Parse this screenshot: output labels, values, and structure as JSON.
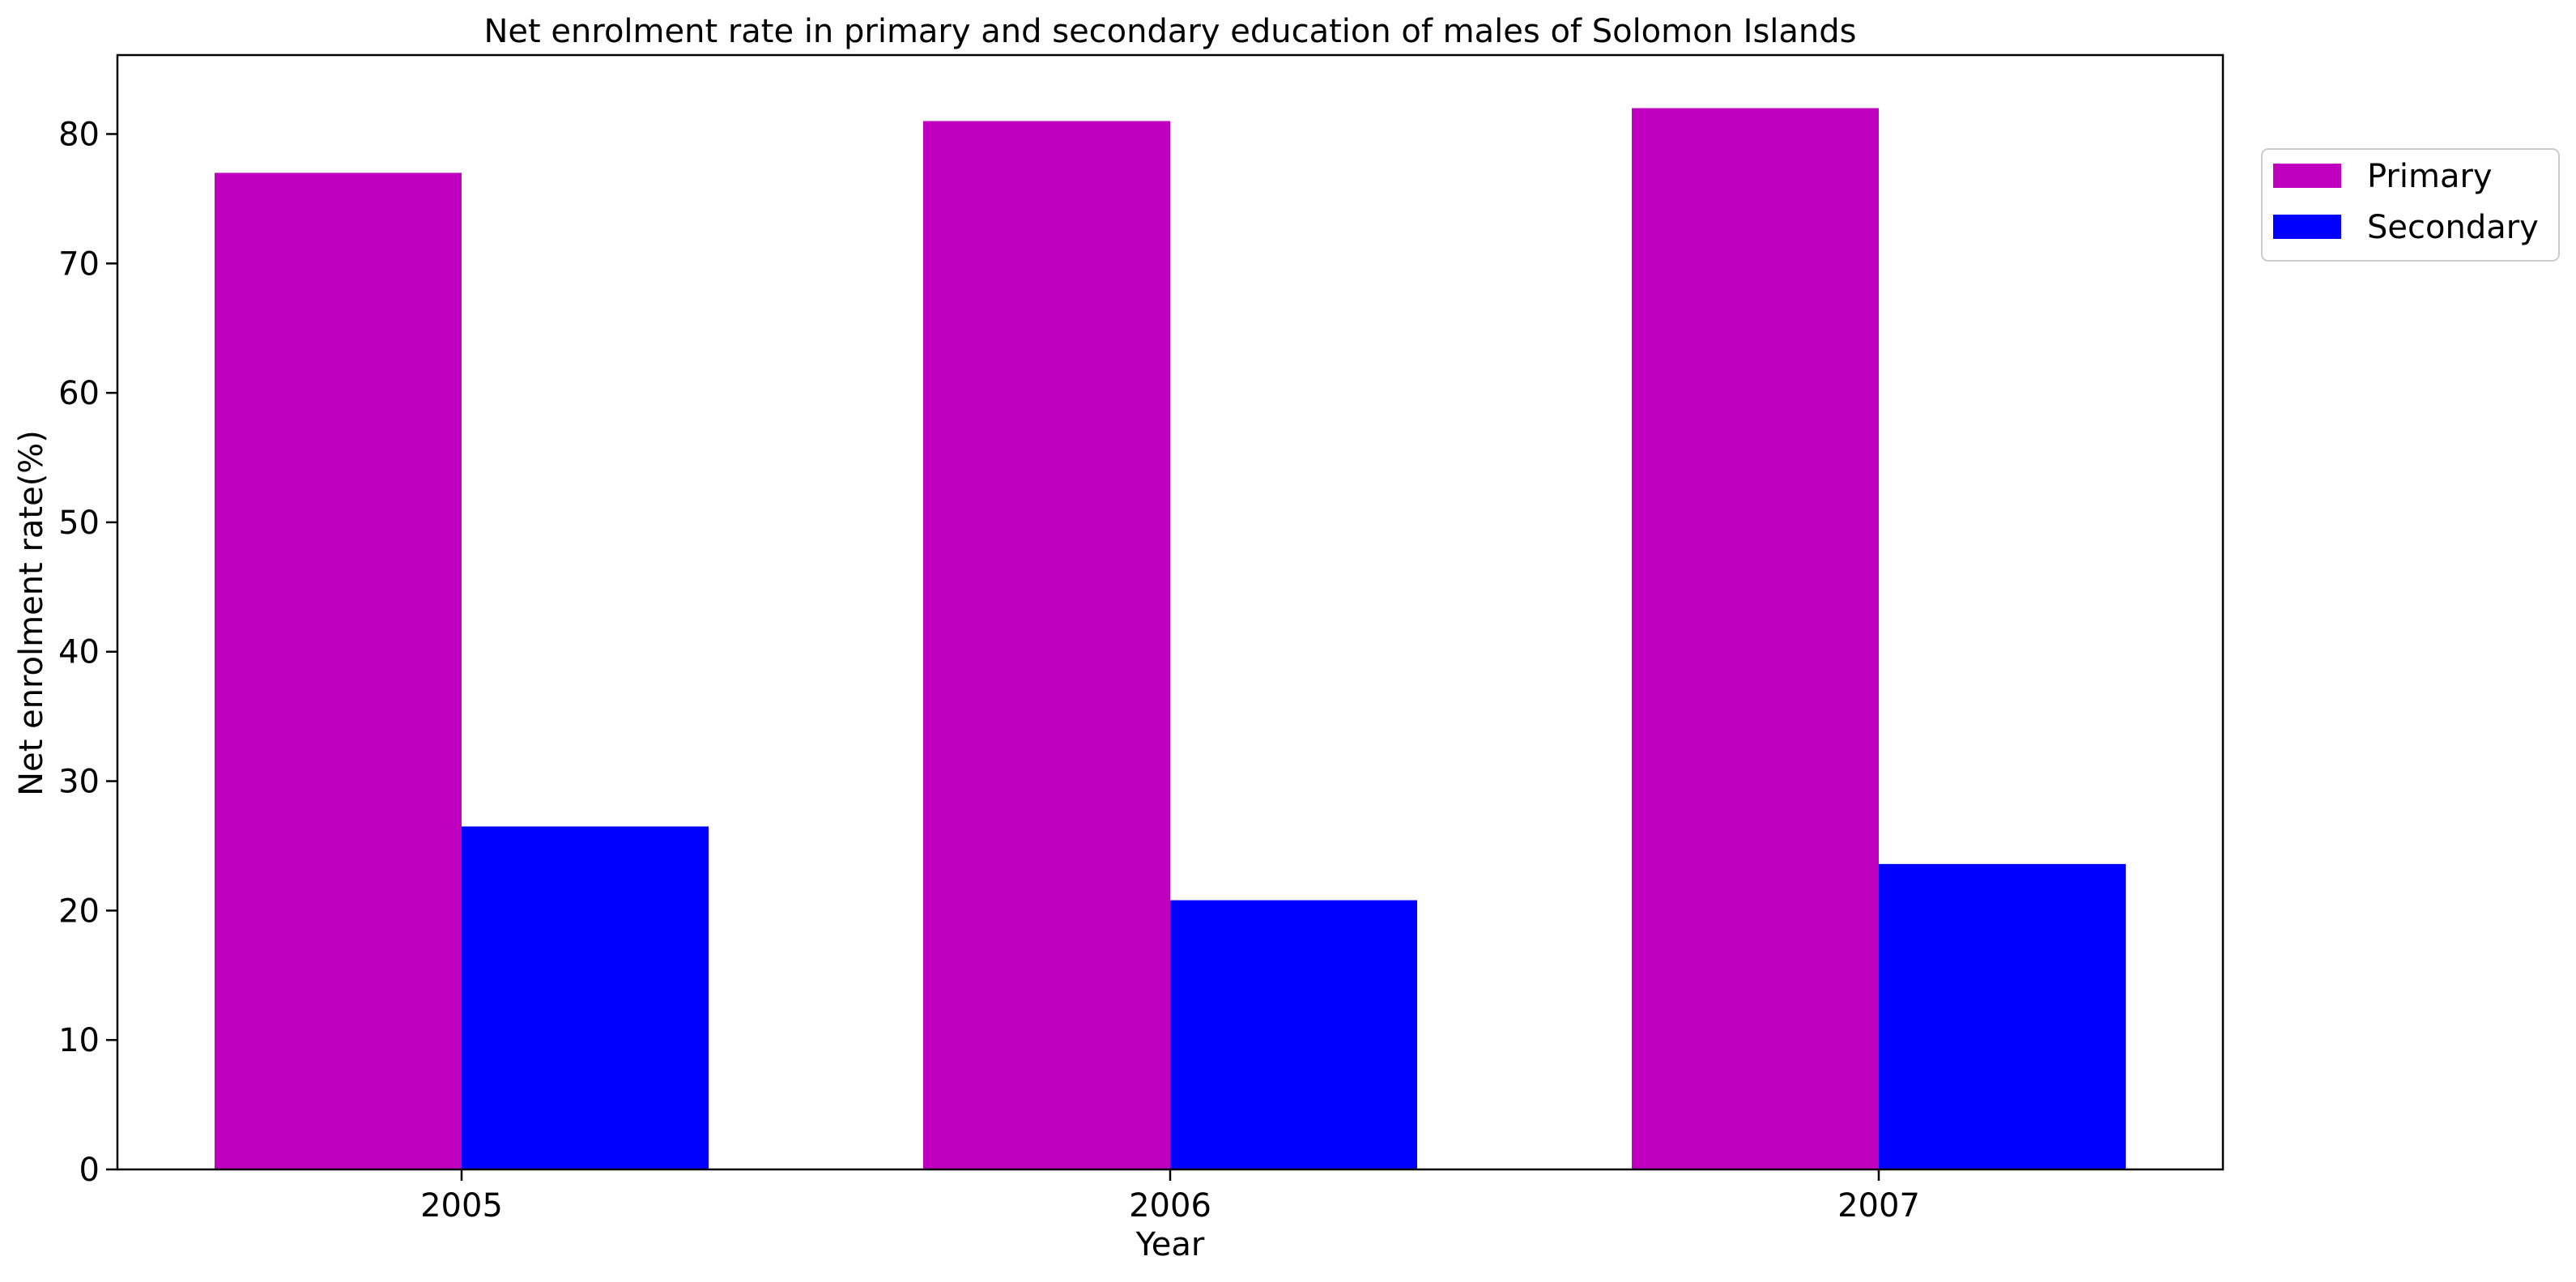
{
  "chart_data": {
    "type": "bar",
    "title": "Net enrolment rate in primary and secondary education of males of Solomon Islands",
    "xlabel": "Year",
    "ylabel": "Net enrolment rate(%)",
    "categories": [
      "2005",
      "2006",
      "2007"
    ],
    "series": [
      {
        "name": "Primary",
        "values": [
          77,
          81,
          82
        ],
        "color": "#bf00bf"
      },
      {
        "name": "Secondary",
        "values": [
          26.5,
          20.8,
          23.6
        ],
        "color": "#0000ff"
      }
    ],
    "ylim": [
      0,
      86.1
    ],
    "yticks": [
      0,
      10,
      20,
      30,
      40,
      50,
      60,
      70,
      80
    ],
    "grid": false,
    "legend_position": "top-right outside"
  }
}
